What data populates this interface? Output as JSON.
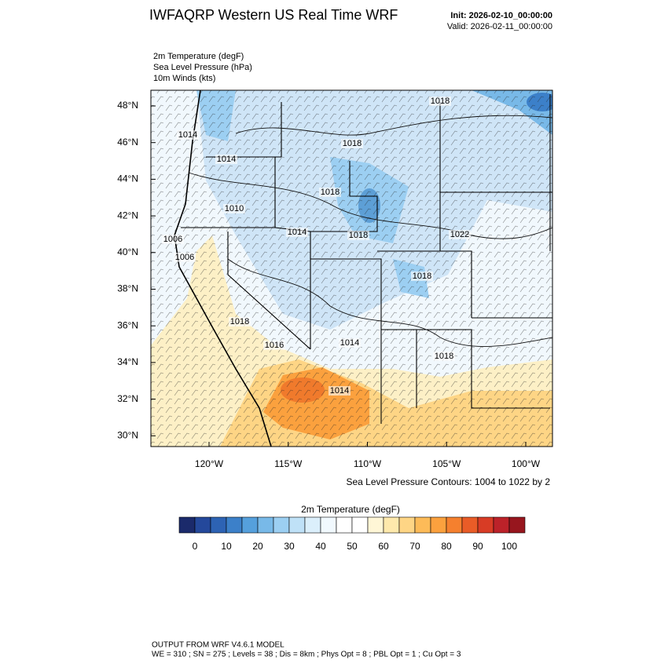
{
  "header": {
    "title": "IWFAQRP Western US Real Time WRF",
    "init": "Init: 2026-02-10_00:00:00",
    "valid": "Valid: 2026-02-11_00:00:00"
  },
  "fields": [
    "2m Temperature   (degF)",
    "Sea Level Pressure   (hPa)",
    "10m Winds   (kts)"
  ],
  "map": {
    "lat_labels": [
      "48°N",
      "46°N",
      "44°N",
      "42°N",
      "40°N",
      "38°N",
      "36°N",
      "34°N",
      "32°N",
      "30°N"
    ],
    "lon_labels": [
      "120°W",
      "115°W",
      "110°W",
      "105°W",
      "100°W"
    ],
    "contour_labels": [
      "1018",
      "1014",
      "1014",
      "1018",
      "1018",
      "1010",
      "1014",
      "1018",
      "1022",
      "1006",
      "1006",
      "1018",
      "1018",
      "1016",
      "1014",
      "1018",
      "1014"
    ],
    "contour_note": "Sea Level Pressure Contours: 1004 to 1022 by 2"
  },
  "colorbar": {
    "title": "2m Temperature  (degF)",
    "colors": [
      "#1b2a6b",
      "#24489b",
      "#2d63b4",
      "#3c80c9",
      "#55a0dc",
      "#78b9e8",
      "#9ccff2",
      "#bfe1f7",
      "#dbeffb",
      "#f1f9fe",
      "#ffffff",
      "#ffffff",
      "#fff6d6",
      "#fee9ac",
      "#fed585",
      "#fdbb58",
      "#fba13e",
      "#f5802e",
      "#e95c27",
      "#d83c25",
      "#bc2229",
      "#97161e"
    ],
    "ticks": [
      0,
      10,
      20,
      30,
      40,
      50,
      60,
      70,
      80,
      90,
      100
    ]
  },
  "footer": [
    "OUTPUT FROM WRF V4.6.1 MODEL",
    "WE = 310 ; SN = 275 ; Levels = 38 ; Dis = 8km ; Phys Opt = 8 ; PBL Opt = 1 ; Cu Opt = 3"
  ]
}
